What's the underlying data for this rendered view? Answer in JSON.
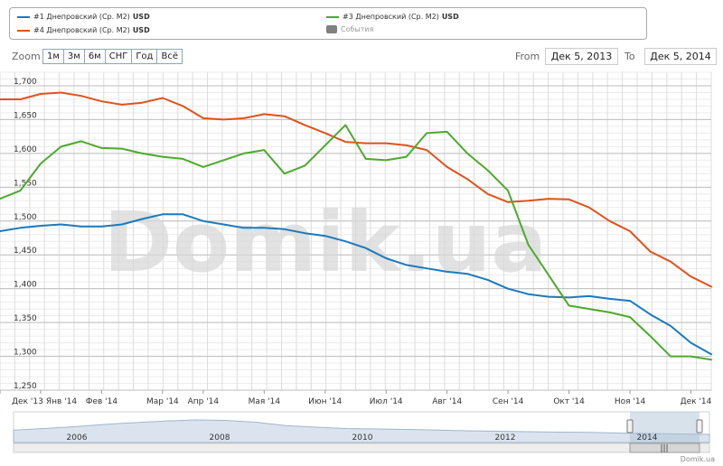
{
  "legend": {
    "items": [
      {
        "label": "#1 Днепровский (Ср. М2)",
        "unit": "USD",
        "color": "#1a7abf"
      },
      {
        "label": "#4 Днепровский (Ср. М2)",
        "unit": "USD",
        "color": "#e0521c"
      },
      {
        "label": "#3 Днепровский (Ср. М2)",
        "unit": "USD",
        "color": "#4caa2c"
      },
      {
        "label": "События",
        "color": "#808080"
      }
    ]
  },
  "zoom": {
    "label": "Zoom",
    "buttons": [
      "1м",
      "3м",
      "6м",
      "СНГ",
      "Год",
      "Всё"
    ]
  },
  "range": {
    "from_label": "From",
    "from_value": "Дек 5, 2013",
    "to_label": "To",
    "to_value": "Дек 5, 2014"
  },
  "watermark": "Domik.ua",
  "credit": "Domik.ua",
  "navigator": {
    "labels": [
      "2006",
      "2008",
      "2010",
      "2012",
      "2014"
    ]
  },
  "chart_data": {
    "type": "line",
    "x": [
      "Дек 5 '13",
      "Дек 15 '13",
      "Янв 1 '14",
      "Янв 15 '14",
      "Янв 25 '14",
      "Фев 1 '14",
      "Фев 10 '14",
      "Фев 20 '14",
      "Мар 1 '14",
      "Мар 15 '14",
      "Апр 1 '14",
      "Апр 10 '14",
      "Апр 20 '14",
      "Мая 1 '14",
      "Мая 10 '14",
      "Мая 20 '14",
      "Июн 1 '14",
      "Июн 10 '14",
      "Июн 20 '14",
      "Июл 1 '14",
      "Июл 10 '14",
      "Июл 20 '14",
      "Авг 1 '14",
      "Авг 10 '14",
      "Авг 20 '14",
      "Сен 1 '14",
      "Сен 10 '14",
      "Сен 20 '14",
      "Окт 1 '14",
      "Окт 10 '14",
      "Окт 20 '14",
      "Ноя 1 '14",
      "Ноя 10 '14",
      "Ноя 20 '14",
      "Дек 1 '14",
      "Дек 5 '14"
    ],
    "series": [
      {
        "name": "#1 Днепровский (Ср. М2)",
        "color": "#1a7abf",
        "values": [
          1485,
          1490,
          1493,
          1495,
          1492,
          1492,
          1495,
          1503,
          1510,
          1510,
          1500,
          1495,
          1490,
          1490,
          1488,
          1482,
          1478,
          1470,
          1460,
          1445,
          1435,
          1430,
          1425,
          1422,
          1413,
          1400,
          1392,
          1388,
          1387,
          1389,
          1385,
          1382,
          1362,
          1345,
          1320,
          1303
        ]
      },
      {
        "name": "#4 Днепровский (Ср. М2)",
        "color": "#e0521c",
        "values": [
          1680,
          1680,
          1688,
          1690,
          1685,
          1677,
          1672,
          1675,
          1682,
          1670,
          1652,
          1650,
          1652,
          1658,
          1655,
          1642,
          1630,
          1617,
          1615,
          1615,
          1612,
          1605,
          1580,
          1562,
          1540,
          1528,
          1530,
          1533,
          1532,
          1520,
          1500,
          1485,
          1455,
          1440,
          1418,
          1403
        ]
      },
      {
        "name": "#3 Днепровский (Ср. М2)",
        "color": "#4caa2c",
        "values": [
          1533,
          1545,
          1585,
          1610,
          1618,
          1608,
          1607,
          1600,
          1595,
          1592,
          1580,
          1590,
          1600,
          1605,
          1570,
          1582,
          1612,
          1642,
          1592,
          1590,
          1595,
          1630,
          1632,
          1600,
          1575,
          1545,
          1465,
          1420,
          1375,
          1370,
          1365,
          1358,
          1330,
          1300,
          1300,
          1295
        ]
      }
    ],
    "y_ticks": [
      "1,250",
      "1,300",
      "1,350",
      "1,400",
      "1,450",
      "1,500",
      "1,550",
      "1,600",
      "1,650",
      "1,700"
    ],
    "x_tick_labels": [
      "Дек '13",
      "Янв '14",
      "Фев '14",
      "Мар '14",
      "Апр '14",
      "Мая '14",
      "Июн '14",
      "Июл '14",
      "Авг '14",
      "Сен '14",
      "Окт '14",
      "Ноя '14",
      "Дек '14"
    ],
    "ylim": [
      1250,
      1720
    ],
    "grid": true,
    "legend_position": "top"
  }
}
